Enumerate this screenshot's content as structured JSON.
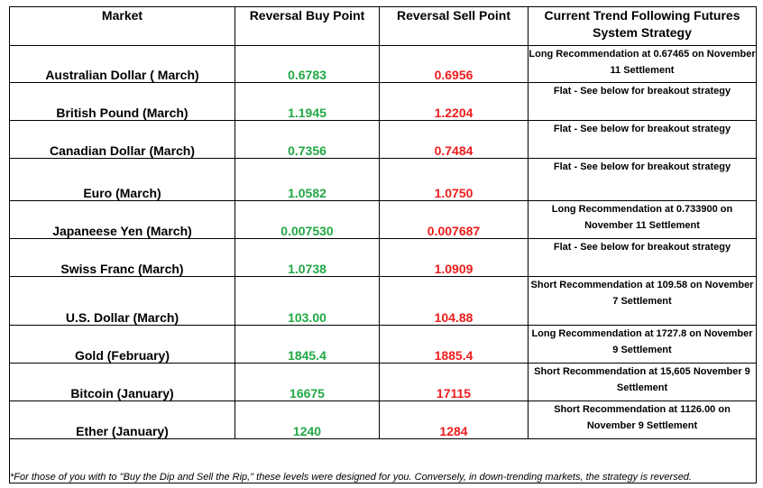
{
  "headers": {
    "market": "Market",
    "buy": "Reversal Buy Point",
    "sell": "Reversal Sell Point",
    "strategy": "Current Trend Following Futures System Strategy"
  },
  "rows": [
    {
      "market": "Australian Dollar ( March)",
      "buy": "0.6783",
      "sell": "0.6956",
      "strategy": "Long Recommendation at 0.67465 on November 11 Settlement"
    },
    {
      "market": "British Pound (March)",
      "buy": "1.1945",
      "sell": "1.2204",
      "strategy": "Flat - See below for breakout strategy"
    },
    {
      "market": "Canadian Dollar (March)",
      "buy": "0.7356",
      "sell": "0.7484",
      "strategy": "Flat - See below for breakout strategy"
    },
    {
      "market": "Euro (March)",
      "buy": "1.0582",
      "sell": "1.0750",
      "strategy": "Flat - See below for breakout strategy"
    },
    {
      "market": "Japaneese Yen (March)",
      "buy": "0.007530",
      "sell": "0.007687",
      "strategy": "Long Recommendation at 0.733900 on November 11 Settlement"
    },
    {
      "market": "Swiss Franc (March)",
      "buy": "1.0738",
      "sell": "1.0909",
      "strategy": "Flat - See below for breakout strategy"
    },
    {
      "market": "U.S. Dollar (March)",
      "buy": "103.00",
      "sell": "104.88",
      "strategy": "Short Recommendation at 109.58 on November 7 Settlement"
    },
    {
      "market": "Gold (February)",
      "buy": "1845.4",
      "sell": "1885.4",
      "strategy": "Long Recommendation at 1727.8 on November 9 Settlement"
    },
    {
      "market": "Bitcoin (January)",
      "buy": "16675",
      "sell": "17115",
      "strategy": "Short Recommendation at 15,605 November 9 Settlement"
    },
    {
      "market": "Ether (January)",
      "buy": "1240",
      "sell": "1284",
      "strategy": "Short Recommendation at 1126.00 on November 9 Settlement"
    }
  ],
  "footnote": "*For those of you with to \"Buy the Dip and Sell the Rip,\" these levels were designed for you. Conversely, in down-trending markets, the strategy is reversed.",
  "colors": {
    "buy": "#22a845",
    "sell": "#ee1c1c"
  }
}
